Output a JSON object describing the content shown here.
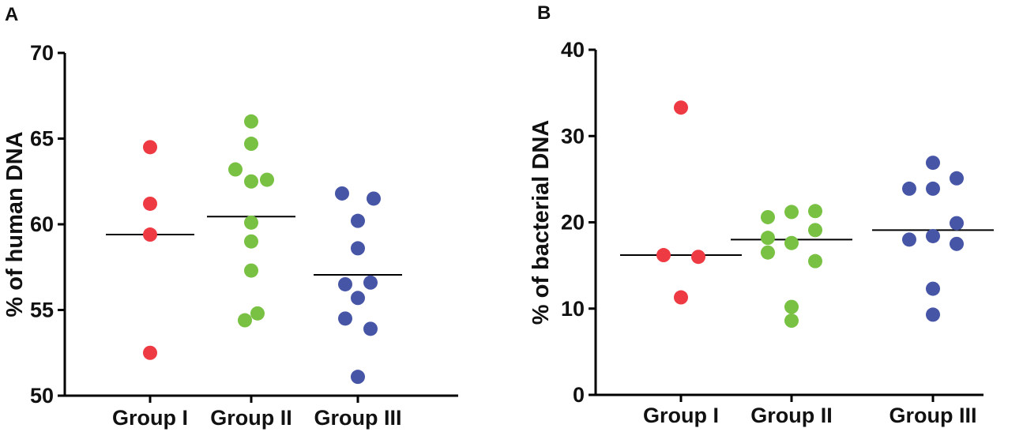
{
  "chart_data": [
    {
      "type": "scatter",
      "panel_label": "A",
      "ylabel": "% of human DNA",
      "xlabel": "",
      "ylim": [
        50,
        70
      ],
      "yticks": [
        50,
        55,
        60,
        65,
        70
      ],
      "categories": [
        "Group I",
        "Group II",
        "Group III"
      ],
      "series": [
        {
          "name": "Group I",
          "color": "#ee3a43",
          "points": [
            {
              "x": 0,
              "y": 64.5
            },
            {
              "x": 0,
              "y": 61.2
            },
            {
              "x": 0,
              "y": 59.4
            },
            {
              "x": 0,
              "y": 52.5
            }
          ],
          "mean": 59.4
        },
        {
          "name": "Group II",
          "color": "#79c142",
          "points": [
            {
              "x": 0,
              "y": 66.0
            },
            {
              "x": 0,
              "y": 64.7
            },
            {
              "x": -0.25,
              "y": 63.2
            },
            {
              "x": 0,
              "y": 62.5
            },
            {
              "x": 0.25,
              "y": 62.6
            },
            {
              "x": 0,
              "y": 60.1
            },
            {
              "x": 0,
              "y": 59.0
            },
            {
              "x": 0,
              "y": 57.3
            },
            {
              "x": -0.1,
              "y": 54.4
            },
            {
              "x": 0.1,
              "y": 54.8
            }
          ],
          "mean": 60.45
        },
        {
          "name": "Group III",
          "color": "#4655a6",
          "points": [
            {
              "x": -0.25,
              "y": 61.8
            },
            {
              "x": 0.25,
              "y": 61.5
            },
            {
              "x": 0,
              "y": 60.2
            },
            {
              "x": 0,
              "y": 58.6
            },
            {
              "x": -0.2,
              "y": 56.5
            },
            {
              "x": 0.2,
              "y": 56.6
            },
            {
              "x": 0,
              "y": 55.7
            },
            {
              "x": -0.2,
              "y": 54.5
            },
            {
              "x": 0.2,
              "y": 53.9
            },
            {
              "x": 0,
              "y": 51.1
            }
          ],
          "mean": 57.05
        }
      ]
    },
    {
      "type": "scatter",
      "panel_label": "B",
      "ylabel": "% of bacterial DNA",
      "xlabel": "",
      "ylim": [
        0,
        40
      ],
      "yticks": [
        0,
        10,
        20,
        30,
        40
      ],
      "categories": [
        "Group I",
        "Group II",
        "Group III"
      ],
      "series": [
        {
          "name": "Group I",
          "color": "#ee3a43",
          "points": [
            {
              "x": 0,
              "y": 33.3
            },
            {
              "x": -0.22,
              "y": 16.2
            },
            {
              "x": 0.22,
              "y": 16.0
            },
            {
              "x": 0,
              "y": 11.3
            }
          ],
          "mean": 16.2
        },
        {
          "name": "Group II",
          "color": "#79c142",
          "points": [
            {
              "x": -0.3,
              "y": 20.6
            },
            {
              "x": 0,
              "y": 21.2
            },
            {
              "x": 0.3,
              "y": 21.3
            },
            {
              "x": -0.3,
              "y": 18.2
            },
            {
              "x": 0.3,
              "y": 19.1
            },
            {
              "x": 0,
              "y": 17.6
            },
            {
              "x": -0.3,
              "y": 16.5
            },
            {
              "x": 0.3,
              "y": 15.5
            },
            {
              "x": 0,
              "y": 10.2
            },
            {
              "x": 0,
              "y": 8.6
            }
          ],
          "mean": 18.0
        },
        {
          "name": "Group III",
          "color": "#4655a6",
          "points": [
            {
              "x": 0,
              "y": 26.9
            },
            {
              "x": -0.3,
              "y": 23.9
            },
            {
              "x": 0,
              "y": 23.9
            },
            {
              "x": 0.3,
              "y": 25.1
            },
            {
              "x": -0.3,
              "y": 18.0
            },
            {
              "x": 0,
              "y": 18.4
            },
            {
              "x": 0.3,
              "y": 19.9
            },
            {
              "x": 0.3,
              "y": 17.5
            },
            {
              "x": 0,
              "y": 12.3
            },
            {
              "x": 0,
              "y": 9.3
            }
          ],
          "mean": 19.1
        }
      ]
    }
  ]
}
